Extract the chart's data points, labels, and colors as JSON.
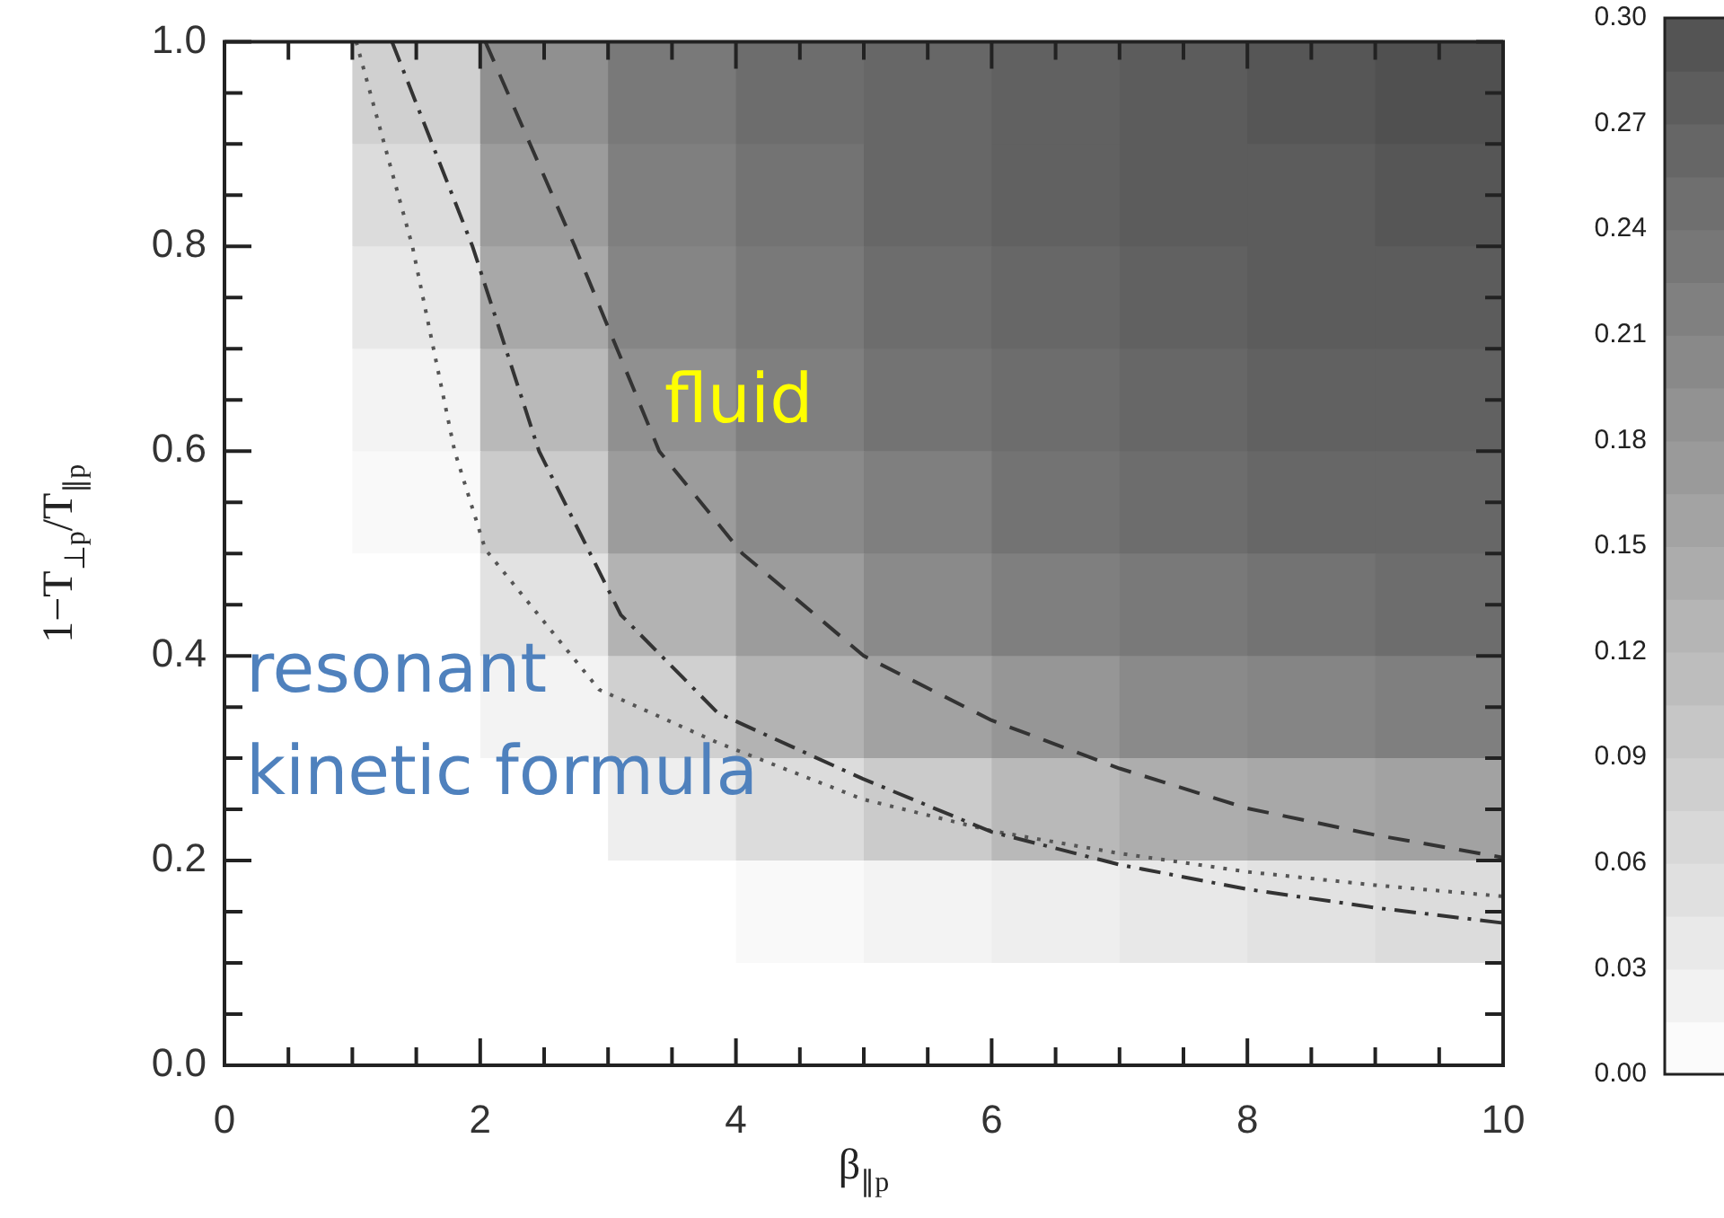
{
  "chart_data": {
    "type": "heatmap",
    "xlabel": "β$_{∥p}$",
    "ylabel": "1−T$_{⊥p}$/T$_{∥p}$",
    "x": [
      0.5,
      1.5,
      2.5,
      3.5,
      4.5,
      5.5,
      6.5,
      7.5,
      8.5,
      9.5
    ],
    "cells": [
      [
        0,
        0.08,
        0.19,
        0.23,
        0.25,
        0.26,
        0.27,
        0.28,
        0.29,
        0.3
      ],
      [
        0,
        0.06,
        0.17,
        0.22,
        0.24,
        0.26,
        0.27,
        0.28,
        0.28,
        0.29
      ],
      [
        0,
        0.04,
        0.15,
        0.21,
        0.23,
        0.25,
        0.26,
        0.27,
        0.28,
        0.28
      ],
      [
        0,
        0.02,
        0.12,
        0.19,
        0.22,
        0.24,
        0.25,
        0.26,
        0.27,
        0.27
      ],
      [
        0,
        0.01,
        0.09,
        0.17,
        0.2,
        0.22,
        0.24,
        0.25,
        0.26,
        0.26
      ],
      [
        0,
        0,
        0.05,
        0.13,
        0.17,
        0.2,
        0.22,
        0.23,
        0.24,
        0.25
      ],
      [
        0,
        0,
        0.02,
        0.08,
        0.13,
        0.16,
        0.18,
        0.2,
        0.21,
        0.22
      ],
      [
        0,
        0,
        0,
        0.03,
        0.06,
        0.09,
        0.12,
        0.14,
        0.15,
        0.16
      ],
      [
        0,
        0,
        0,
        0,
        0.01,
        0.02,
        0.03,
        0.04,
        0.05,
        0.06
      ],
      [
        0,
        0,
        0,
        0,
        0,
        0,
        0,
        0,
        0,
        0
      ]
    ],
    "clim": [
      0,
      0.3
    ],
    "cticks": [
      {
        "value": 0,
        "label": "0.00"
      },
      0.03,
      0.06,
      0.09,
      0.12,
      0.15,
      0.18,
      0.21,
      0.24,
      0.27,
      {
        "value": 0.3,
        "label": "0.30"
      }
    ],
    "xlim": [
      0,
      10
    ],
    "ylim": [
      0,
      1
    ],
    "xticks": [
      0,
      {
        "value": 0.5,
        "label": null
      },
      {
        "value": 1,
        "label": null
      },
      {
        "value": 1.5,
        "label": null
      },
      2,
      {
        "value": 2.5,
        "label": null
      },
      {
        "value": 3,
        "label": null
      },
      {
        "value": 3.5,
        "label": null
      },
      4,
      {
        "value": 4.5,
        "label": null
      },
      {
        "value": 5,
        "label": null
      },
      {
        "value": 5.5,
        "label": null
      },
      6,
      {
        "value": 6.5,
        "label": null
      },
      {
        "value": 7,
        "label": null
      },
      {
        "value": 7.5,
        "label": null
      },
      8,
      {
        "value": 8.5,
        "label": null
      },
      {
        "value": 9,
        "label": null
      },
      {
        "value": 9.5,
        "label": null
      },
      10
    ],
    "yticks": [
      {
        "value": 0,
        "label": "0.0"
      },
      {
        "value": 0.05,
        "label": null
      },
      {
        "value": 0.1,
        "label": null
      },
      {
        "value": 0.15,
        "label": null
      },
      0.2,
      {
        "value": 0.25,
        "label": null
      },
      {
        "value": 0.3,
        "label": null
      },
      {
        "value": 0.35,
        "label": null
      },
      0.4,
      {
        "value": 0.45,
        "label": null
      },
      {
        "value": 0.5,
        "label": null
      },
      {
        "value": 0.55,
        "label": null
      },
      0.6,
      {
        "value": 0.65,
        "label": null
      },
      {
        "value": 0.7,
        "label": null
      },
      {
        "value": 0.75,
        "label": null
      },
      0.8,
      {
        "value": 0.85,
        "label": null
      },
      {
        "value": 0.9,
        "label": null
      },
      {
        "value": 0.95,
        "label": null
      },
      {
        "value": 1,
        "label": "1.0"
      }
    ],
    "series": [
      {
        "type": "line",
        "color": "#333333",
        "line_style": "dashed",
        "x": [
          2.04,
          2.74,
          3.4,
          4.05,
          5,
          6,
          7,
          8,
          9,
          10
        ],
        "values": [
          1,
          0.8,
          0.6,
          0.5,
          0.4,
          0.337,
          0.29,
          0.251,
          0.225,
          0.203
        ]
      },
      {
        "type": "line",
        "color": "#333333",
        "line_style": "dashdot",
        "x": [
          1.31,
          1.94,
          2.46,
          3.1,
          3.86,
          4.99,
          6,
          7,
          8,
          9,
          10
        ],
        "values": [
          1,
          0.8,
          0.6,
          0.44,
          0.344,
          0.28,
          0.228,
          0.196,
          0.172,
          0.154,
          0.139
        ]
      },
      {
        "type": "line",
        "color": "#555555",
        "line_style": "dotted",
        "x": [
          1.03,
          1.47,
          1.8,
          2.04,
          2.93,
          3.86,
          4.99,
          6,
          7,
          8,
          9,
          10
        ],
        "values": [
          1,
          0.8,
          0.6,
          0.504,
          0.367,
          0.315,
          0.26,
          0.229,
          0.207,
          0.189,
          0.176,
          0.165
        ]
      }
    ],
    "marker": "none",
    "annotations": [
      "fluid",
      "resonant kinetic formula"
    ]
  }
}
